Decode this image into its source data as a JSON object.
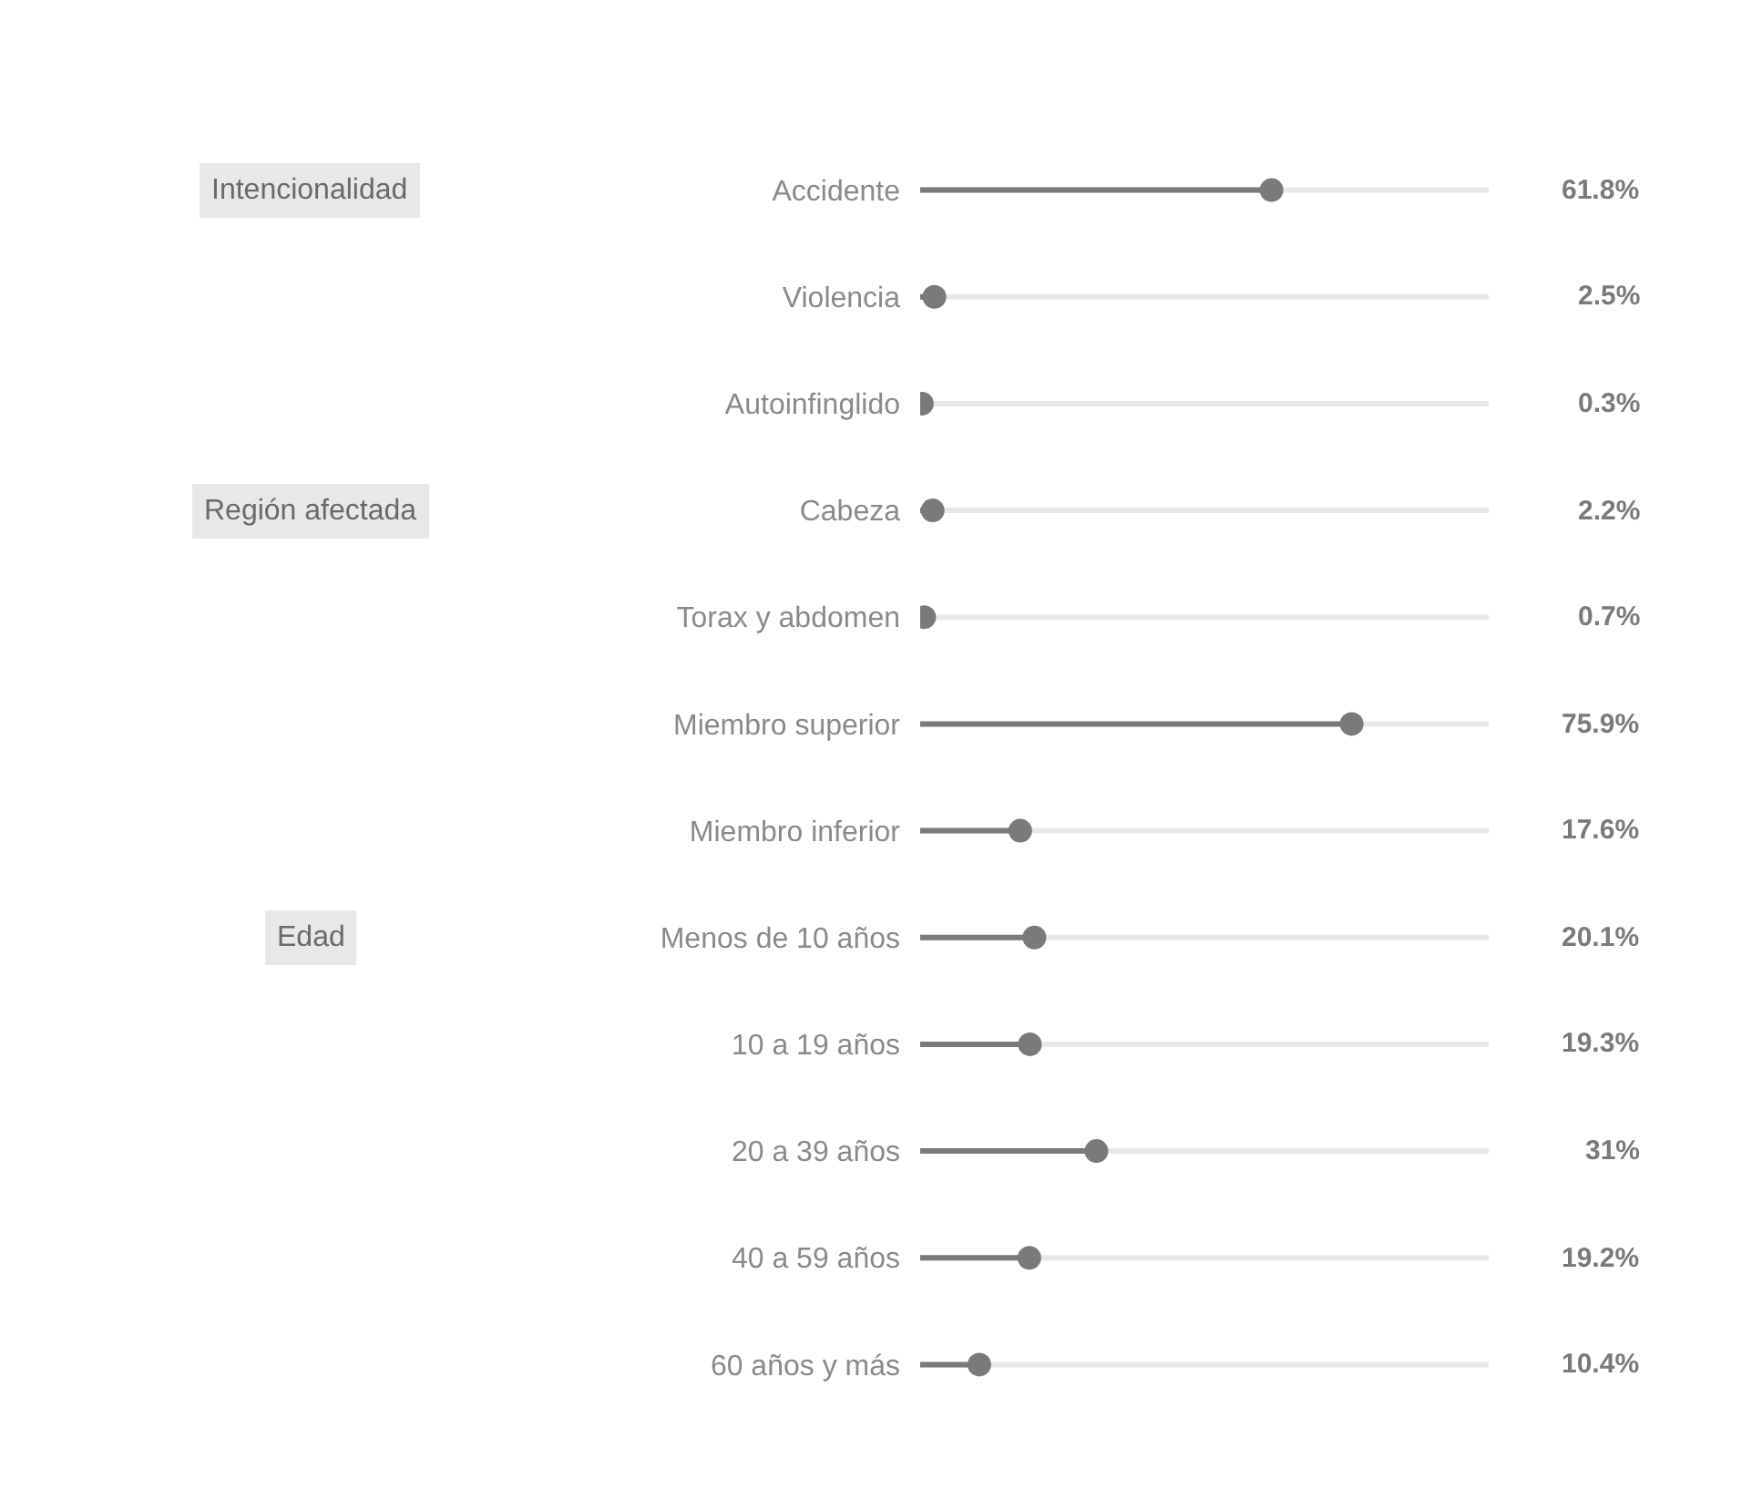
{
  "chart_data": {
    "type": "lollipop",
    "orientation": "horizontal",
    "categories": [
      "Accidente",
      "Violencia",
      "Autoinfinglido",
      "Cabeza",
      "Torax y abdomen",
      "Miembro superior",
      "Miembro inferior",
      "Menos de 10 años",
      "10 a 19 años",
      "20 a 39 años",
      "40 a 59 años",
      "60 años y más"
    ],
    "values": [
      61.8,
      2.5,
      0.3,
      2.2,
      0.7,
      75.9,
      17.6,
      20.1,
      19.3,
      31,
      19.2,
      10.4
    ],
    "value_labels": [
      "61.8%",
      "2.5%",
      "0.3%",
      "2.2%",
      "0.7%",
      "75.9%",
      "17.6%",
      "20.1%",
      "19.3%",
      "31%",
      "19.2%",
      "10.4%"
    ],
    "color": "#7a7a7a",
    "xlim": [
      0,
      100
    ],
    "tick_labels": "y",
    "grid": "y",
    "marker": "circle",
    "annotations": [
      "Intencionalidad",
      "Región afectada",
      "Edad"
    ]
  }
}
